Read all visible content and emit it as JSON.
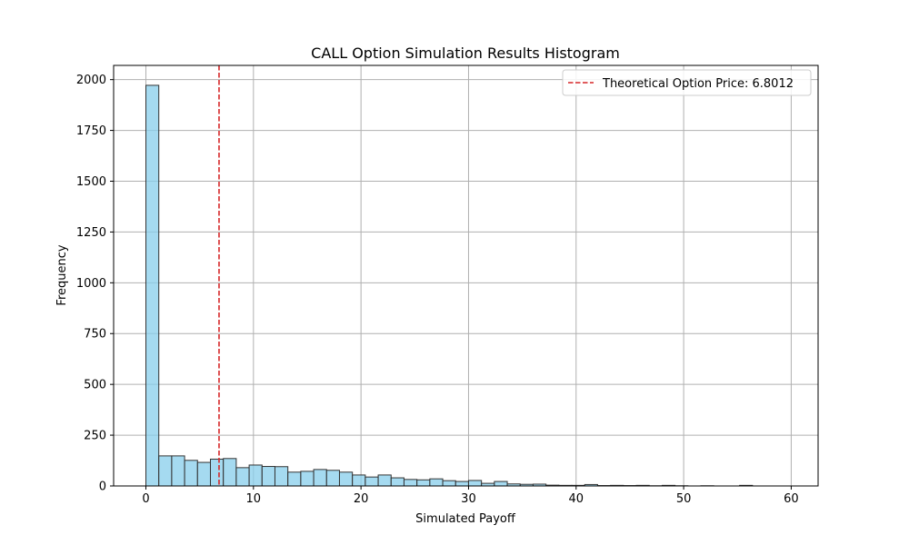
{
  "chart_data": {
    "type": "bar",
    "title": "CALL Option Simulation Results Histogram",
    "xlabel": "Simulated Payoff",
    "ylabel": "Frequency",
    "xlim": [
      -3,
      62.5
    ],
    "ylim": [
      0,
      2070
    ],
    "xticks": [
      0,
      10,
      20,
      30,
      40,
      50,
      60
    ],
    "yticks": [
      0,
      250,
      500,
      750,
      1000,
      1250,
      1500,
      1750,
      2000
    ],
    "grid": true,
    "bar_color": "#87ceeb",
    "bar_edge_color": "#333333",
    "bin_start": 0,
    "bin_width": 1.2,
    "values": [
      1972,
      148,
      148,
      126,
      116,
      132,
      135,
      90,
      103,
      96,
      95,
      68,
      72,
      81,
      77,
      68,
      54,
      44,
      54,
      40,
      32,
      30,
      35,
      26,
      22,
      27,
      13,
      22,
      10,
      8,
      9,
      4,
      3,
      3,
      7,
      2,
      3,
      2,
      3,
      1,
      3,
      1,
      0,
      1,
      0,
      0,
      3,
      0,
      0,
      0
    ],
    "reference_line": {
      "x": 6.8012,
      "color": "#d62728",
      "label": "Theoretical Option Price: 6.8012"
    },
    "legend_position": "top-right"
  }
}
